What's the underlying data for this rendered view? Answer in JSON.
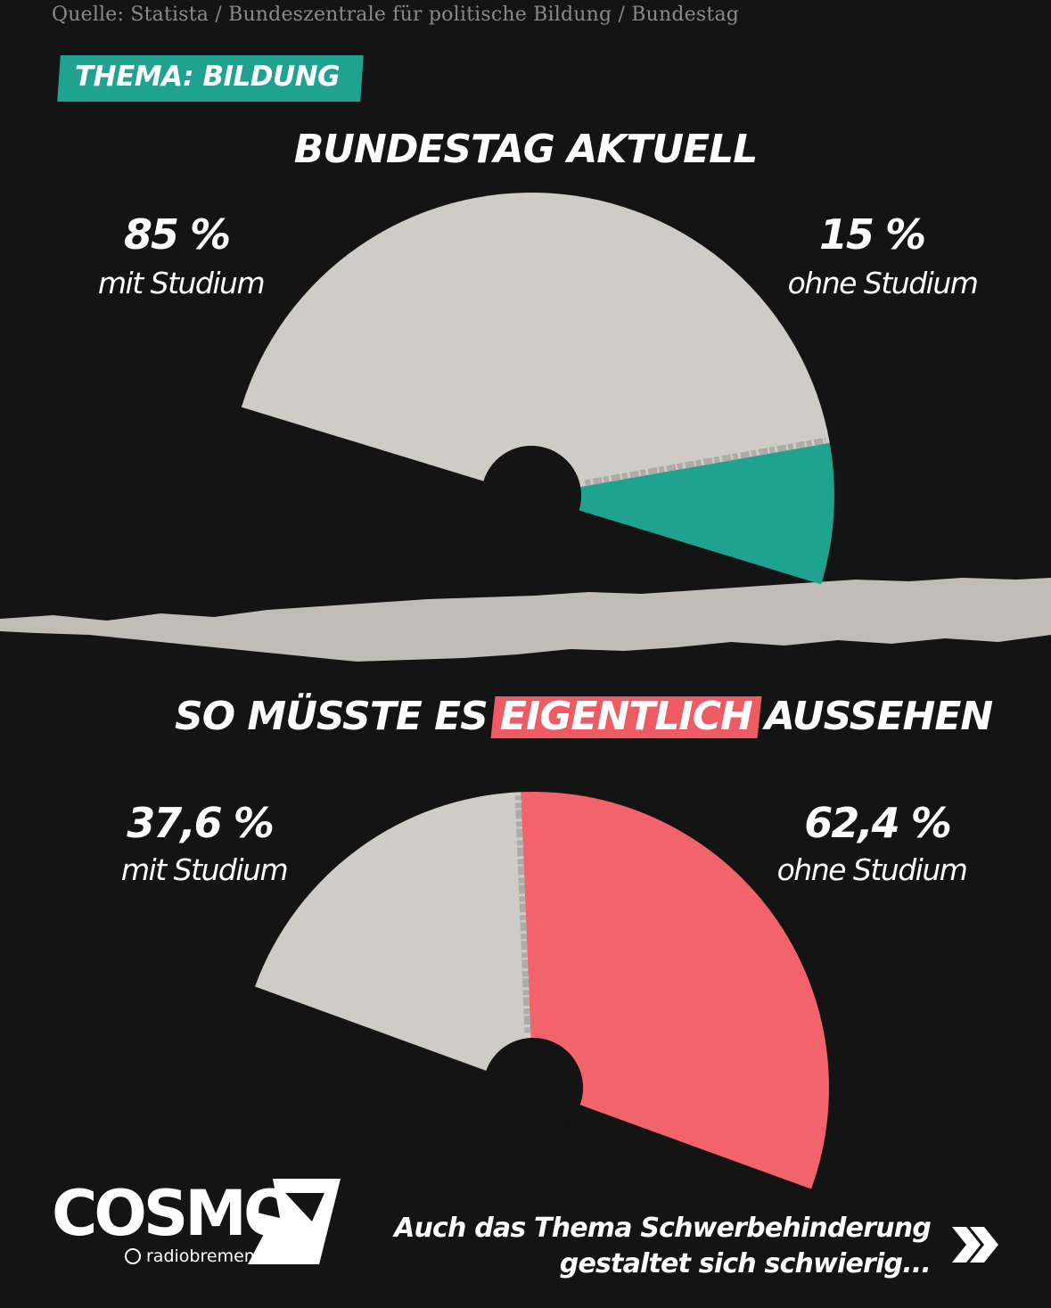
{
  "source": "Quelle: Statista / Bundeszentrale für politische Bildung / Bundestag",
  "tag": "THEMA: BILDUNG",
  "headline_top": "BUNDESTAG AKTUELL",
  "headline_bottom": {
    "before": "SO MÜSSTE ES",
    "highlight": "EIGENTLICH",
    "after": "AUSSEHEN"
  },
  "colors": {
    "background": "#141414",
    "grey": "#cfccc7",
    "teal": "#1fa28f",
    "red": "#f2636b"
  },
  "chart_data": [
    {
      "type": "pie",
      "title": "BUNDESTAG AKTUELL",
      "slices": [
        {
          "name": "mit Studium",
          "value": 85,
          "display": "85 %",
          "color": "#cfccc7"
        },
        {
          "name": "ohne Studium",
          "value": 15,
          "display": "15 %",
          "color": "#1fa28f"
        }
      ]
    },
    {
      "type": "pie",
      "title": "SO MÜSSTE ES EIGENTLICH AUSSEHEN",
      "slices": [
        {
          "name": "mit Studium",
          "value": 37.6,
          "display": "37,6 %",
          "color": "#cfccc7"
        },
        {
          "name": "ohne Studium",
          "value": 62.4,
          "display": "62,4 %",
          "color": "#f2636b"
        }
      ]
    }
  ],
  "logo": {
    "brand": "COSMO",
    "sub": "radiobremen",
    "icon": "cosmo-logo-icon"
  },
  "footer": {
    "line1": "Auch das Thema Schwerbehinderung",
    "line2": "gestaltet sich schwierig...",
    "icon": "double-chevron-right-icon"
  }
}
